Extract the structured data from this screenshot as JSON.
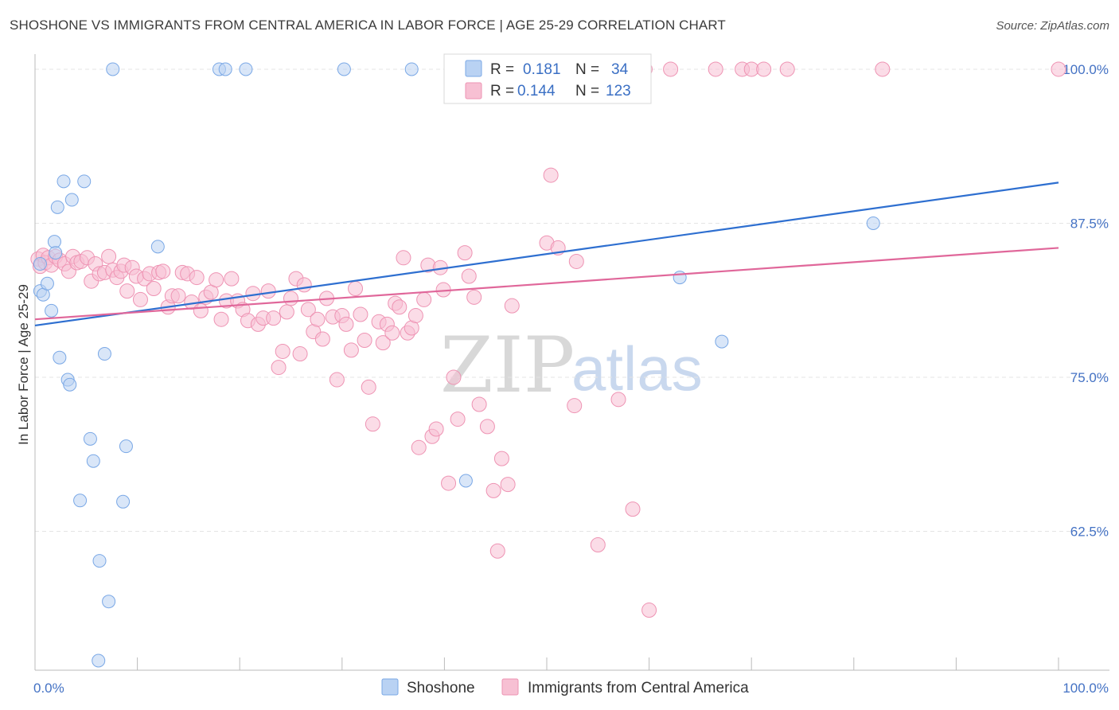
{
  "title": "SHOSHONE VS IMMIGRANTS FROM CENTRAL AMERICA IN LABOR FORCE | AGE 25-29 CORRELATION CHART",
  "source": "Source: ZipAtlas.com",
  "watermark": {
    "zip": "ZIP",
    "atlas": "atlas"
  },
  "legend_top": {
    "r_label": "R =",
    "n_label": "N =",
    "rows": [
      {
        "r": "0.181",
        "n": "34"
      },
      {
        "r": "0.144",
        "n": "123"
      }
    ]
  },
  "legend_bottom": [
    "Shoshone",
    "Immigrants from Central America"
  ],
  "colors": {
    "shoshone_fill": "#b9d2f3",
    "shoshone_stroke": "#7aa8e6",
    "shoshone_line": "#2e6fd0",
    "immigrants_fill": "#f7c0d3",
    "immigrants_stroke": "#ee93b3",
    "immigrants_line": "#e0679a",
    "tick_text": "#4472c4"
  },
  "chart_data": {
    "type": "scatter",
    "title": "SHOSHONE VS IMMIGRANTS FROM CENTRAL AMERICA IN LABOR FORCE | AGE 25-29 CORRELATION CHART",
    "xlabel": "",
    "ylabel": "In Labor Force | Age 25-29",
    "xlim": [
      0,
      100
    ],
    "ylim": [
      52,
      102
    ],
    "x_tick_labels": [
      "0.0%",
      "100.0%"
    ],
    "y_ticks": [
      62.5,
      75.0,
      87.5,
      100.0
    ],
    "y_tick_labels": [
      "62.5%",
      "75.0%",
      "87.5%",
      "100.0%"
    ],
    "grid": true,
    "series": [
      {
        "name": "Shoshone",
        "r": 0.181,
        "n": 34,
        "trend": {
          "x": [
            0,
            100
          ],
          "y": [
            79.2,
            90.8
          ]
        },
        "points": [
          [
            0.5,
            84.2
          ],
          [
            0.5,
            82.0
          ],
          [
            0.8,
            81.7
          ],
          [
            1.2,
            82.6
          ],
          [
            1.6,
            80.4
          ],
          [
            1.9,
            86.0
          ],
          [
            2.0,
            85.1
          ],
          [
            2.2,
            88.8
          ],
          [
            2.4,
            76.6
          ],
          [
            2.8,
            90.9
          ],
          [
            3.2,
            74.8
          ],
          [
            3.4,
            74.4
          ],
          [
            3.6,
            89.4
          ],
          [
            4.4,
            65.0
          ],
          [
            4.8,
            90.9
          ],
          [
            5.4,
            70.0
          ],
          [
            5.7,
            68.2
          ],
          [
            6.3,
            60.1
          ],
          [
            6.2,
            52.0
          ],
          [
            6.8,
            76.9
          ],
          [
            7.2,
            56.8
          ],
          [
            7.6,
            100.0
          ],
          [
            8.6,
            64.9
          ],
          [
            8.9,
            69.4
          ],
          [
            12.0,
            85.6
          ],
          [
            18.0,
            100.0
          ],
          [
            18.6,
            100.0
          ],
          [
            20.6,
            100.0
          ],
          [
            30.2,
            100.0
          ],
          [
            36.8,
            100.0
          ],
          [
            42.1,
            66.6
          ],
          [
            63.0,
            83.1
          ],
          [
            67.1,
            77.9
          ],
          [
            81.9,
            87.5
          ]
        ]
      },
      {
        "name": "Immigrants from Central America",
        "r": 0.144,
        "n": 123,
        "trend": {
          "x": [
            0,
            100
          ],
          "y": [
            79.7,
            85.5
          ]
        },
        "points": [
          [
            0.3,
            84.6
          ],
          [
            0.5,
            84.0
          ],
          [
            0.8,
            84.9
          ],
          [
            1.0,
            84.3
          ],
          [
            1.3,
            84.7
          ],
          [
            1.6,
            84.1
          ],
          [
            2.0,
            84.8
          ],
          [
            2.4,
            84.5
          ],
          [
            2.9,
            84.2
          ],
          [
            3.3,
            83.6
          ],
          [
            3.7,
            84.8
          ],
          [
            4.1,
            84.3
          ],
          [
            4.5,
            84.4
          ],
          [
            5.1,
            84.7
          ],
          [
            5.5,
            82.8
          ],
          [
            5.9,
            84.2
          ],
          [
            6.3,
            83.4
          ],
          [
            6.8,
            83.5
          ],
          [
            7.2,
            84.8
          ],
          [
            7.6,
            83.7
          ],
          [
            8.0,
            83.1
          ],
          [
            8.4,
            83.6
          ],
          [
            8.7,
            84.1
          ],
          [
            9.0,
            82.0
          ],
          [
            9.5,
            83.9
          ],
          [
            9.9,
            83.2
          ],
          [
            10.3,
            81.3
          ],
          [
            10.7,
            83.0
          ],
          [
            11.2,
            83.4
          ],
          [
            11.6,
            82.2
          ],
          [
            12.1,
            83.5
          ],
          [
            12.5,
            83.6
          ],
          [
            13.0,
            80.7
          ],
          [
            13.4,
            81.6
          ],
          [
            14.0,
            81.6
          ],
          [
            14.4,
            83.5
          ],
          [
            14.9,
            83.4
          ],
          [
            15.3,
            81.1
          ],
          [
            15.8,
            83.1
          ],
          [
            16.2,
            80.4
          ],
          [
            16.7,
            81.5
          ],
          [
            17.2,
            81.9
          ],
          [
            17.7,
            82.9
          ],
          [
            18.2,
            79.7
          ],
          [
            18.7,
            81.2
          ],
          [
            19.2,
            83.0
          ],
          [
            19.8,
            81.2
          ],
          [
            20.3,
            80.5
          ],
          [
            20.8,
            79.6
          ],
          [
            21.3,
            81.8
          ],
          [
            21.8,
            79.3
          ],
          [
            22.3,
            79.8
          ],
          [
            22.8,
            82.0
          ],
          [
            23.3,
            79.8
          ],
          [
            23.8,
            75.8
          ],
          [
            24.2,
            77.1
          ],
          [
            24.6,
            80.3
          ],
          [
            25.0,
            81.4
          ],
          [
            25.5,
            83.0
          ],
          [
            25.9,
            76.9
          ],
          [
            26.3,
            82.5
          ],
          [
            26.7,
            80.5
          ],
          [
            27.2,
            78.7
          ],
          [
            27.6,
            79.7
          ],
          [
            28.1,
            78.1
          ],
          [
            28.5,
            81.4
          ],
          [
            29.1,
            79.9
          ],
          [
            29.5,
            74.8
          ],
          [
            30.0,
            80.0
          ],
          [
            30.4,
            79.3
          ],
          [
            30.9,
            77.2
          ],
          [
            31.3,
            82.2
          ],
          [
            31.8,
            80.1
          ],
          [
            32.2,
            78.0
          ],
          [
            32.6,
            74.2
          ],
          [
            33.0,
            71.2
          ],
          [
            33.6,
            79.5
          ],
          [
            34.0,
            77.8
          ],
          [
            34.4,
            79.3
          ],
          [
            34.9,
            78.6
          ],
          [
            35.2,
            81.0
          ],
          [
            35.6,
            80.7
          ],
          [
            36.0,
            84.7
          ],
          [
            36.4,
            78.6
          ],
          [
            36.8,
            79.0
          ],
          [
            37.2,
            80.0
          ],
          [
            37.5,
            69.3
          ],
          [
            38.0,
            81.3
          ],
          [
            38.4,
            84.1
          ],
          [
            38.8,
            70.2
          ],
          [
            39.2,
            70.8
          ],
          [
            39.6,
            83.9
          ],
          [
            39.9,
            82.1
          ],
          [
            40.4,
            66.4
          ],
          [
            40.9,
            75.0
          ],
          [
            41.3,
            71.6
          ],
          [
            42.0,
            85.1
          ],
          [
            42.4,
            83.2
          ],
          [
            42.9,
            81.5
          ],
          [
            43.4,
            72.8
          ],
          [
            44.2,
            71.0
          ],
          [
            44.8,
            65.8
          ],
          [
            45.2,
            60.9
          ],
          [
            45.6,
            68.4
          ],
          [
            46.2,
            66.3
          ],
          [
            46.6,
            80.8
          ],
          [
            47.0,
            100.0
          ],
          [
            50.0,
            85.9
          ],
          [
            50.4,
            91.4
          ],
          [
            51.1,
            85.5
          ],
          [
            52.7,
            72.7
          ],
          [
            52.9,
            84.4
          ],
          [
            55.0,
            61.4
          ],
          [
            57.0,
            73.2
          ],
          [
            57.4,
            100.0
          ],
          [
            58.4,
            64.3
          ],
          [
            59.6,
            100.0
          ],
          [
            60.0,
            56.1
          ],
          [
            62.1,
            100.0
          ],
          [
            66.5,
            100.0
          ],
          [
            69.1,
            100.0
          ],
          [
            70.0,
            100.0
          ],
          [
            71.2,
            100.0
          ],
          [
            73.5,
            100.0
          ],
          [
            82.8,
            100.0
          ],
          [
            100.0,
            100.0
          ]
        ]
      }
    ]
  }
}
